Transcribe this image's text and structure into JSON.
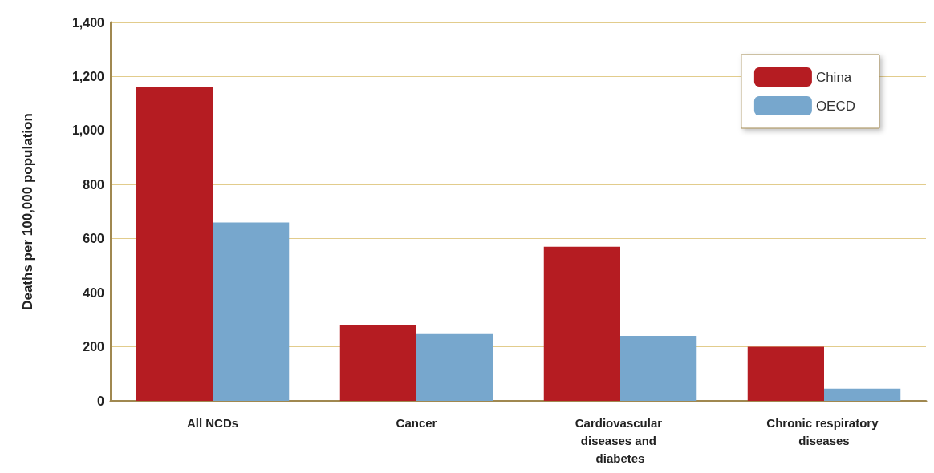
{
  "chart_data": {
    "type": "bar",
    "ylabel": "Deaths per 100,000 population",
    "categories": [
      "All NCDs",
      "Cancer",
      "Cardiovascular diseases and diabetes",
      "Chronic respiratory diseases"
    ],
    "series": [
      {
        "name": "China",
        "color": "#b51c22",
        "values": [
          1160,
          280,
          570,
          200
        ]
      },
      {
        "name": "OECD",
        "color": "#77a7cd",
        "values": [
          660,
          250,
          240,
          45
        ]
      }
    ],
    "ylim": [
      0,
      1400
    ],
    "yticks": [
      0,
      {
        "value": 200,
        "label": "200"
      },
      {
        "value": 400,
        "label": "400"
      },
      {
        "value": 600,
        "label": "600"
      },
      {
        "value": 800,
        "label": "800"
      },
      {
        "value": 1000,
        "label": "1,000"
      },
      {
        "value": 1200,
        "label": "1,200"
      },
      {
        "value": 1400,
        "label": "1,400"
      }
    ],
    "grid": "y",
    "legend": "top right"
  }
}
